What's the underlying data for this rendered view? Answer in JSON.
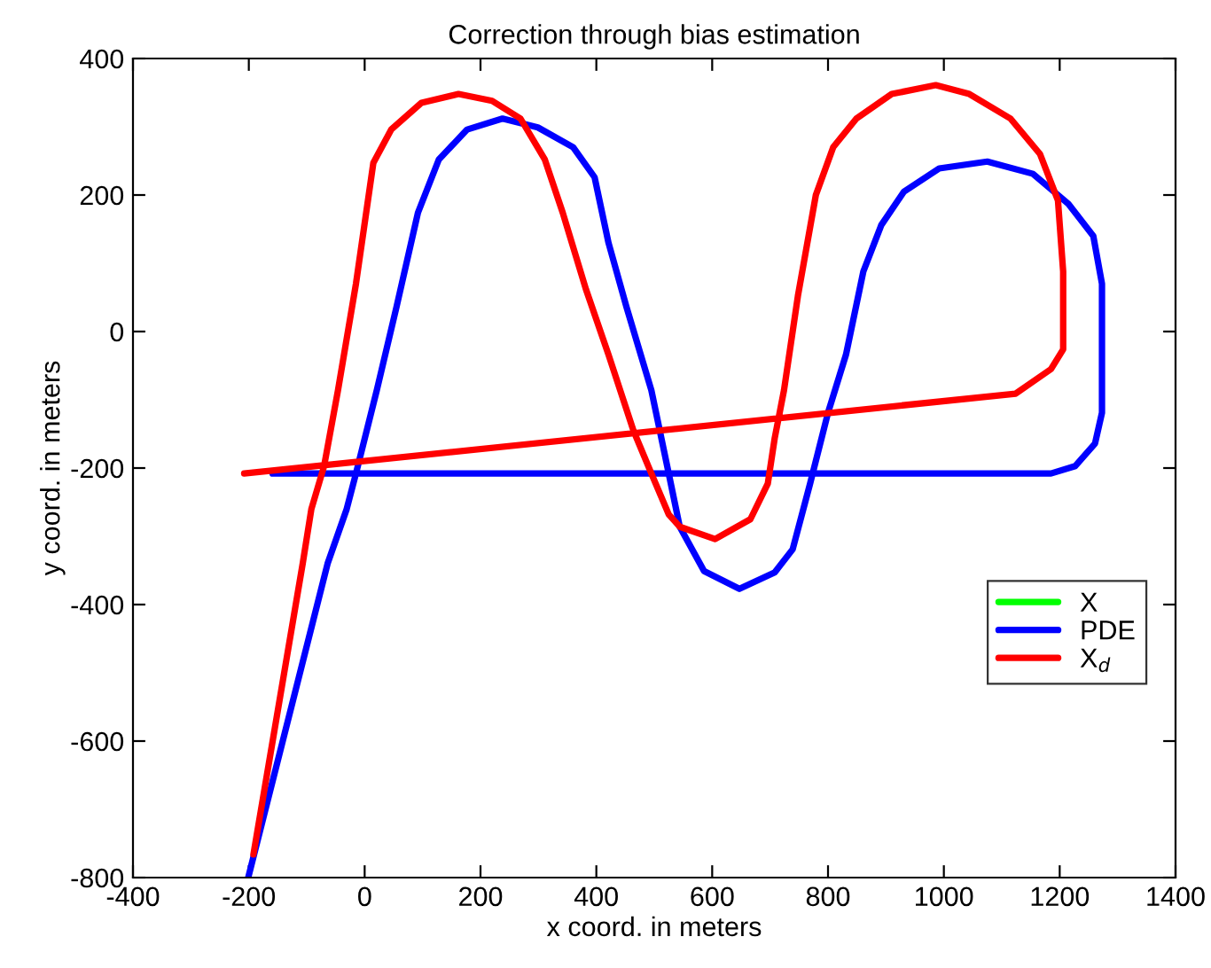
{
  "chart_data": {
    "type": "line",
    "title": "Correction through bias estimation",
    "xlabel": "x coord. in meters",
    "ylabel": "y coord. in meters",
    "xlim": [
      -400,
      1400
    ],
    "xticks": [
      -400,
      -200,
      0,
      200,
      400,
      600,
      800,
      1000,
      1200,
      1400
    ],
    "ylim": [
      -800,
      400
    ],
    "yticks": [
      -800,
      -600,
      -400,
      -200,
      0,
      200,
      400
    ],
    "grid": false,
    "legend": "lower right",
    "marker": "none",
    "line_style": "solid",
    "series": [
      {
        "name": "X",
        "color": "#00ff00"
      },
      {
        "name": "PDE",
        "color": "#0000ff",
        "x": [
          -201,
          -64,
          -31,
          -15,
          21,
          55,
          92,
          128,
          177,
          238,
          299,
          360,
          397,
          421,
          452,
          495,
          525,
          544,
          586,
          647,
          708,
          739,
          769,
          800,
          831,
          861,
          892,
          931,
          992,
          1075,
          1154,
          1215,
          1258,
          1273,
          1273,
          1261,
          1227,
          1185,
          -159
        ],
        "values": [
          -800,
          -340,
          -260,
          -208,
          -86,
          36,
          174,
          252,
          296,
          312,
          299,
          270,
          226,
          130,
          36,
          -86,
          -208,
          -286,
          -351,
          -377,
          -353,
          -319,
          -223,
          -119,
          -34,
          88,
          156,
          205,
          239,
          249,
          231,
          187,
          140,
          70,
          -119,
          -164,
          -197,
          -208,
          -208
        ]
      },
      {
        "name": "X$_{d}$",
        "color": "#ff0000",
        "x": [
          -192,
          -107,
          -92,
          -70,
          -46,
          -15,
          15,
          46,
          98,
          162,
          220,
          269,
          311,
          342,
          382,
          421,
          464,
          495,
          525,
          544,
          605,
          666,
          696,
          708,
          724,
          748,
          779,
          809,
          849,
          910,
          986,
          1044,
          1115,
          1166,
          1197,
          1206,
          1206,
          1185,
          1124,
          -208
        ],
        "values": [
          -766,
          -340,
          -260,
          -197,
          -86,
          70,
          247,
          296,
          335,
          348,
          338,
          312,
          252,
          174,
          62,
          -34,
          -145,
          -208,
          -268,
          -286,
          -304,
          -275,
          -223,
          -156,
          -86,
          52,
          200,
          270,
          312,
          348,
          361,
          348,
          312,
          260,
          192,
          88,
          -26,
          -55,
          -91,
          -208
        ]
      }
    ]
  }
}
